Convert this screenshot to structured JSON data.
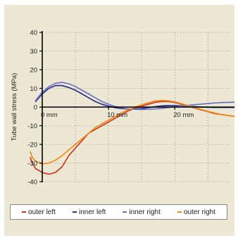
{
  "chart_data": {
    "type": "line",
    "title": "",
    "xlabel": "",
    "ylabel": "Tube wall stress (MPa)",
    "xlim": [
      0,
      29
    ],
    "ylim": [
      -40,
      40
    ],
    "x_ticks": [
      {
        "value": 0,
        "label": "0 mm"
      },
      {
        "value": 10,
        "label": "10 mm"
      },
      {
        "value": 20,
        "label": "20 mm"
      }
    ],
    "y_ticks": [
      40,
      30,
      20,
      10,
      0,
      -10,
      -20,
      -30,
      -40
    ],
    "grid": true,
    "legend_position": "bottom",
    "series": [
      {
        "name": "outer left",
        "color": "#cc3a26",
        "x": [
          -1.8,
          -1.5,
          -1,
          0,
          1,
          2,
          3,
          4,
          5,
          6,
          7,
          8,
          9,
          10,
          11,
          12,
          13,
          14,
          15,
          16,
          17,
          18,
          19,
          20,
          21,
          22,
          23,
          24,
          25,
          26,
          27,
          28,
          29
        ],
        "y": [
          -27,
          -30,
          -33,
          -35,
          -36,
          -35,
          -32,
          -26,
          -22,
          -18,
          -14,
          -12,
          -10,
          -8,
          -6,
          -4,
          -2,
          -0.5,
          0.5,
          1.5,
          2.5,
          3,
          3,
          2.5,
          1.5,
          0.5,
          -0.5,
          -1.5,
          -2.5,
          -3.5,
          -4,
          -4.5,
          -5
        ]
      },
      {
        "name": "inner left",
        "color": "#2a2e8c",
        "x": [
          -1,
          0,
          1,
          2,
          3,
          4,
          5,
          6,
          7,
          8,
          9,
          10,
          11,
          12,
          13,
          14,
          15,
          16,
          17,
          18,
          19,
          20,
          21,
          22,
          23,
          24,
          25,
          26,
          27,
          28,
          29
        ],
        "y": [
          3,
          7,
          10,
          11.5,
          11.5,
          10.5,
          9,
          7,
          5,
          3,
          1.5,
          0.5,
          -0.3,
          -0.8,
          -1,
          -1,
          -0.8,
          -0.3,
          0.2,
          0.6,
          0.8,
          0.8,
          0.6,
          0.4,
          0.2,
          0,
          -0.1,
          -0.2,
          -0.2,
          -0.2,
          -0.2
        ]
      },
      {
        "name": "inner right",
        "color": "#6f72c4",
        "x": [
          -1,
          0,
          1,
          2,
          3,
          4,
          5,
          6,
          7,
          8,
          9,
          10,
          11,
          12,
          13,
          14,
          15,
          16,
          17,
          18,
          19,
          20,
          21,
          22,
          23,
          24,
          25,
          26,
          27,
          28,
          29
        ],
        "y": [
          3.5,
          8,
          11,
          12.8,
          13.2,
          12.5,
          11,
          9,
          7,
          5,
          3,
          1.5,
          0.3,
          -0.5,
          -1,
          -1.2,
          -1.3,
          -1.2,
          -1,
          -0.7,
          -0.3,
          0.1,
          0.5,
          0.9,
          1.3,
          1.6,
          1.9,
          2.2,
          2.4,
          2.5,
          2.6
        ]
      },
      {
        "name": "outer right",
        "color": "#f08a1c",
        "x": [
          -1.8,
          -1.5,
          -1,
          0,
          1,
          2,
          3,
          4,
          5,
          6,
          7,
          8,
          9,
          10,
          11,
          12,
          13,
          14,
          15,
          16,
          17,
          18,
          19,
          20,
          21,
          22,
          23,
          24,
          25,
          26,
          27,
          28,
          29
        ],
        "y": [
          -24,
          -27,
          -29,
          -30.5,
          -30,
          -28.5,
          -26,
          -23,
          -20,
          -17,
          -14,
          -11,
          -9,
          -7,
          -5,
          -3,
          -1.5,
          0,
          1.2,
          2.3,
          3.2,
          3.6,
          3.4,
          2.8,
          1.8,
          0.8,
          -0.3,
          -1.3,
          -2.3,
          -3.2,
          -4,
          -4.6,
          -5
        ]
      }
    ]
  }
}
